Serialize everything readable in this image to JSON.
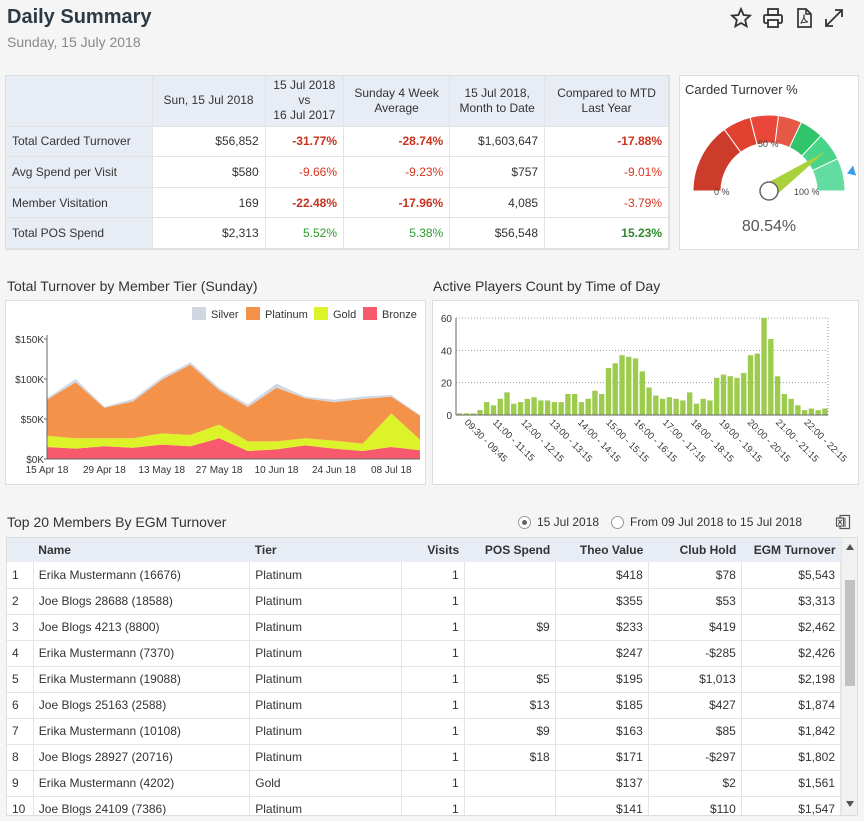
{
  "header": {
    "title": "Daily Summary",
    "date": "Sunday, 15 July 2018"
  },
  "icons": [
    "star-icon",
    "print-icon",
    "pdf-icon",
    "expand-icon"
  ],
  "summary": {
    "columns": [
      "Sun, 15 Jul 2018",
      "15 Jul 2018 vs 16 Jul 2017",
      "Sunday 4 Week Average",
      "15 Jul 2018, Month to Date",
      "Compared to MTD Last Year"
    ],
    "column_lines": [
      [
        "Sun, 15 Jul 2018"
      ],
      [
        "15 Jul 2018",
        "vs",
        "16 Jul 2017"
      ],
      [
        "Sunday 4 Week",
        "Average"
      ],
      [
        "15 Jul 2018,",
        "Month to Date"
      ],
      [
        "Compared to MTD",
        "Last Year"
      ]
    ],
    "rows": [
      {
        "label": "Total Carded Turnover",
        "values": [
          "$56,852",
          "-31.77%",
          "-28.74%",
          "$1,603,647",
          "-17.88%"
        ],
        "styles": [
          "",
          "redb",
          "redb",
          "",
          "redb"
        ]
      },
      {
        "label": "Avg Spend per Visit",
        "values": [
          "$580",
          "-9.66%",
          "-9.23%",
          "$757",
          "-9.01%"
        ],
        "styles": [
          "",
          "red",
          "red",
          "",
          "red"
        ]
      },
      {
        "label": "Member Visitation",
        "values": [
          "169",
          "-22.48%",
          "-17.96%",
          "4,085",
          "-3.79%"
        ],
        "styles": [
          "",
          "redb",
          "redb",
          "",
          "red"
        ]
      },
      {
        "label": "Total POS Spend",
        "values": [
          "$2,313",
          "5.52%",
          "5.38%",
          "$56,548",
          "15.23%"
        ],
        "styles": [
          "",
          "green",
          "green",
          "",
          "greenb"
        ]
      }
    ]
  },
  "gauge": {
    "title": "Carded Turnover %",
    "value": 80.54,
    "value_label": "80.54%",
    "min_label": "0 %",
    "mid_label": "50 %",
    "max_label": "100 %",
    "target_fraction": 0.93
  },
  "tier_chart": {
    "heading": "Total Turnover by Member Tier (Sunday)"
  },
  "players_chart": {
    "heading": "Active Players Count by Time of Day"
  },
  "chart_data": [
    {
      "type": "area",
      "title": "Total Turnover by Member Tier (Sunday)",
      "x": [
        "15 Apr 18",
        "22 Apr 18",
        "29 Apr 18",
        "06 May 18",
        "13 May 18",
        "20 May 18",
        "27 May 18",
        "03 Jun 18",
        "10 Jun 18",
        "17 Jun 18",
        "24 Jun 18",
        "01 Jul 18",
        "08 Jul 18",
        "15 Jul 18"
      ],
      "x_tick_labels": [
        "15 Apr 18",
        "29 Apr 18",
        "13 May 18",
        "27 May 18",
        "10 Jun 18",
        "24 Jun 18",
        "08 Jul 18"
      ],
      "y_ticks": [
        "$0K",
        "$50K",
        "$100K",
        "$150K"
      ],
      "ylim": [
        0,
        150000
      ],
      "stacked": true,
      "legend_position": "top-right",
      "series": [
        {
          "name": "Bronze",
          "color": "#f65a6c",
          "values": [
            15000,
            13000,
            16000,
            14000,
            18000,
            16000,
            26000,
            10000,
            12000,
            17000,
            13000,
            10000,
            15000,
            11000
          ]
        },
        {
          "name": "Gold",
          "color": "#dcf32a",
          "values": [
            14000,
            13000,
            10000,
            12000,
            14000,
            14000,
            17000,
            12000,
            10000,
            9000,
            10000,
            9000,
            42000,
            13000
          ]
        },
        {
          "name": "Platinum",
          "color": "#f5924a",
          "values": [
            45000,
            70000,
            38000,
            46000,
            67000,
            88000,
            43000,
            43000,
            67000,
            50000,
            48000,
            56000,
            21000,
            30000
          ]
        },
        {
          "name": "Silver",
          "color": "#cfd7e3",
          "values": [
            2000,
            4000,
            1000,
            3000,
            3000,
            3000,
            3000,
            3000,
            5000,
            2000,
            3000,
            3000,
            2000,
            1000
          ]
        }
      ]
    },
    {
      "type": "bar",
      "title": "Active Players Count by Time of Day",
      "color": "#9ccb4e",
      "categories": [
        "09:00",
        "09:15",
        "09:30",
        "09:45",
        "10:00",
        "10:15",
        "10:30",
        "10:45",
        "11:00",
        "11:15",
        "11:30",
        "11:45",
        "12:00",
        "12:15",
        "12:30",
        "12:45",
        "13:00",
        "13:15",
        "13:30",
        "13:45",
        "14:00",
        "14:15",
        "14:30",
        "14:45",
        "15:00",
        "15:15",
        "15:30",
        "15:45",
        "16:00",
        "16:15",
        "16:30",
        "16:45",
        "17:00",
        "17:15",
        "17:30",
        "17:45",
        "18:00",
        "18:15",
        "18:30",
        "18:45",
        "19:00",
        "19:15",
        "19:30",
        "19:45",
        "20:00",
        "20:15",
        "20:30",
        "20:45",
        "21:00",
        "21:15",
        "21:30",
        "21:45",
        "22:00",
        "22:15",
        "22:30"
      ],
      "x_tick_labels": [
        "09:30 - 09:45",
        "11:00 - 11:15",
        "12:00 - 12:15",
        "13:00 - 13:15",
        "14:00 - 14:15",
        "15:00 - 15:15",
        "16:00 - 16:15",
        "17:00 - 17:15",
        "18:00 - 18:15",
        "19:00 - 19:15",
        "20:00 - 20:15",
        "21:00 - 21:15",
        "22:00 - 22:15"
      ],
      "values": [
        1,
        1,
        1,
        3,
        8,
        6,
        10,
        14,
        7,
        8,
        10,
        11,
        9,
        9,
        8,
        8,
        13,
        13,
        8,
        10,
        15,
        13,
        29,
        32,
        37,
        36,
        35,
        27,
        17,
        12,
        10,
        11,
        10,
        9,
        14,
        7,
        10,
        9,
        23,
        25,
        24,
        23,
        26,
        37,
        38,
        60,
        47,
        24,
        13,
        10,
        6,
        3,
        4,
        3,
        4
      ],
      "y_ticks": [
        "0",
        "20",
        "40",
        "60"
      ],
      "ylim": [
        0,
        60
      ],
      "grid": true
    }
  ],
  "members": {
    "heading": "Top 20 Members By EGM Turnover",
    "filter_options": [
      "15 Jul 2018",
      "From 09 Jul 2018 to 15 Jul 2018"
    ],
    "selected_filter": "15 Jul 2018",
    "columns": [
      "",
      "Name",
      "Tier",
      "Visits",
      "POS Spend",
      "Theo Value",
      "Club Hold",
      "EGM Turnover"
    ],
    "rows": [
      [
        "1",
        "Erika Mustermann (16676)",
        "Platinum",
        "1",
        "",
        "$418",
        "$78",
        "$5,543"
      ],
      [
        "2",
        "Joe Blogs 28688 (18588)",
        "Platinum",
        "1",
        "",
        "$355",
        "$53",
        "$3,313"
      ],
      [
        "3",
        "Joe Blogs 4213 (8800)",
        "Platinum",
        "1",
        "$9",
        "$233",
        "$419",
        "$2,462"
      ],
      [
        "4",
        "Erika Mustermann (7370)",
        "Platinum",
        "1",
        "",
        "$247",
        "-$285",
        "$2,426"
      ],
      [
        "5",
        "Erika Mustermann (19088)",
        "Platinum",
        "1",
        "$5",
        "$195",
        "$1,013",
        "$2,198"
      ],
      [
        "6",
        "Joe Blogs 25163 (2588)",
        "Platinum",
        "1",
        "$13",
        "$185",
        "$427",
        "$1,874"
      ],
      [
        "7",
        "Erika Mustermann (10108)",
        "Platinum",
        "1",
        "$9",
        "$163",
        "$85",
        "$1,842"
      ],
      [
        "8",
        "Joe Blogs 28927 (20716)",
        "Platinum",
        "1",
        "$18",
        "$171",
        "-$297",
        "$1,802"
      ],
      [
        "9",
        "Erika Mustermann (4202)",
        "Gold",
        "1",
        "",
        "$137",
        "$2",
        "$1,561"
      ],
      [
        "10",
        "Joe Blogs 24109 (7386)",
        "Platinum",
        "1",
        "",
        "$141",
        "$110",
        "$1,547"
      ]
    ]
  }
}
